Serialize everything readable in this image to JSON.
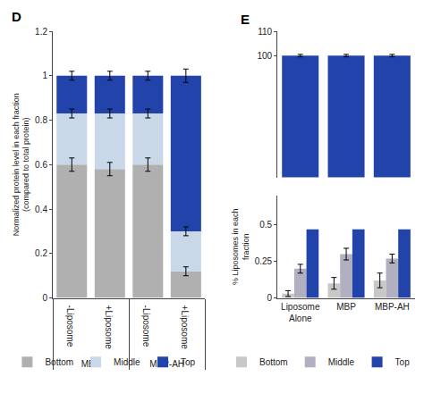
{
  "chart_data": [
    {
      "type": "bar",
      "title": "D",
      "stacked": true,
      "categories": [
        "-Liposome",
        "+Liposome",
        "-Liposome",
        "+Liposome"
      ],
      "groups": [
        "MBP",
        "MBP",
        "MBP-AH",
        "MBP-AH"
      ],
      "series": [
        {
          "name": "Bottom",
          "color": "#b0b0b0",
          "values": [
            0.6,
            0.58,
            0.6,
            0.12
          ],
          "errors": [
            0.03,
            0.03,
            0.03,
            0.02
          ]
        },
        {
          "name": "Middle",
          "color": "#c8d8e8",
          "values": [
            0.23,
            0.25,
            0.23,
            0.18
          ],
          "errors": [
            0.02,
            0.02,
            0.02,
            0.02
          ]
        },
        {
          "name": "Top",
          "color": "#2244aa",
          "values": [
            0.17,
            0.17,
            0.17,
            0.7
          ],
          "errors": [
            0.02,
            0.02,
            0.02,
            0.03
          ]
        }
      ],
      "ylabel": "Normalized protein level in each fraction\n(compared to total protein)",
      "ylim": [
        0,
        1.2
      ],
      "yticks": [
        0,
        0.2,
        0.4,
        0.6,
        0.8,
        1.0,
        1.2
      ],
      "grid": false,
      "legend": "bottom"
    },
    {
      "type": "bar",
      "title": "E",
      "categories": [
        "Liposome\nAlone",
        "MBP",
        "MBP-AH"
      ],
      "values": [
        100.0,
        100.0,
        100.0
      ],
      "errors": [
        0.5,
        0.5,
        0.5
      ],
      "color": "#2244aa",
      "ylim": [
        50,
        110
      ],
      "yticks": [
        100,
        110
      ],
      "tick_labels": "y",
      "grid": false
    },
    {
      "type": "bar",
      "categories": [
        "Liposome\nAlone",
        "MBP",
        "MBP-AH"
      ],
      "series": [
        {
          "name": "Bottom",
          "color": "#c8c8c8",
          "values": [
            0.03,
            0.1,
            0.12
          ],
          "errors": [
            0.02,
            0.04,
            0.05
          ]
        },
        {
          "name": "Middle",
          "color": "#b0b0c0",
          "values": [
            0.2,
            0.3,
            0.27
          ],
          "errors": [
            0.03,
            0.04,
            0.03
          ]
        },
        {
          "name": "Top",
          "color": "#2244aa",
          "values": [
            0.47,
            0.47,
            0.47
          ]
        }
      ],
      "ylabel": "% Liposomes in each\nfraction",
      "ylim": [
        0,
        0.7
      ],
      "yticks": [
        0,
        0.25,
        0.5
      ],
      "grid": false,
      "legend": "bottom"
    }
  ]
}
